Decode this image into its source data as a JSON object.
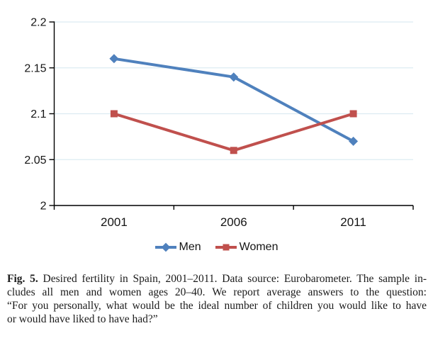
{
  "chart_data": {
    "type": "line",
    "title": "",
    "xlabel": "",
    "ylabel": "",
    "categories": [
      "2001",
      "2006",
      "2011"
    ],
    "series": [
      {
        "name": "Men",
        "values": [
          2.16,
          2.14,
          2.07
        ],
        "color": "#4F81BD",
        "marker": "diamond"
      },
      {
        "name": "Women",
        "values": [
          2.1,
          2.06,
          2.1
        ],
        "color": "#C0504D",
        "marker": "square"
      }
    ],
    "ylim": [
      2,
      2.2
    ],
    "yticks": [
      2,
      2.05,
      2.1,
      2.15,
      2.2
    ],
    "ytick_labels": [
      "2",
      "2.05",
      "2.1",
      "2.15",
      "2.2"
    ],
    "grid": true,
    "gridline_color": "#DCEBF2",
    "axis_color": "#000000",
    "legend_position": "bottom"
  },
  "caption": {
    "label": "Fig. 5.",
    "lines": [
      "Desired fertility in Spain, 2001–2011. Data source: Eurobarometer. The sample in-",
      "cludes all men and women ages 20–40. We report average answers to the question:",
      "“For you personally, what would be the ideal number of children you would like to have",
      "or would have liked to have had?”"
    ]
  }
}
